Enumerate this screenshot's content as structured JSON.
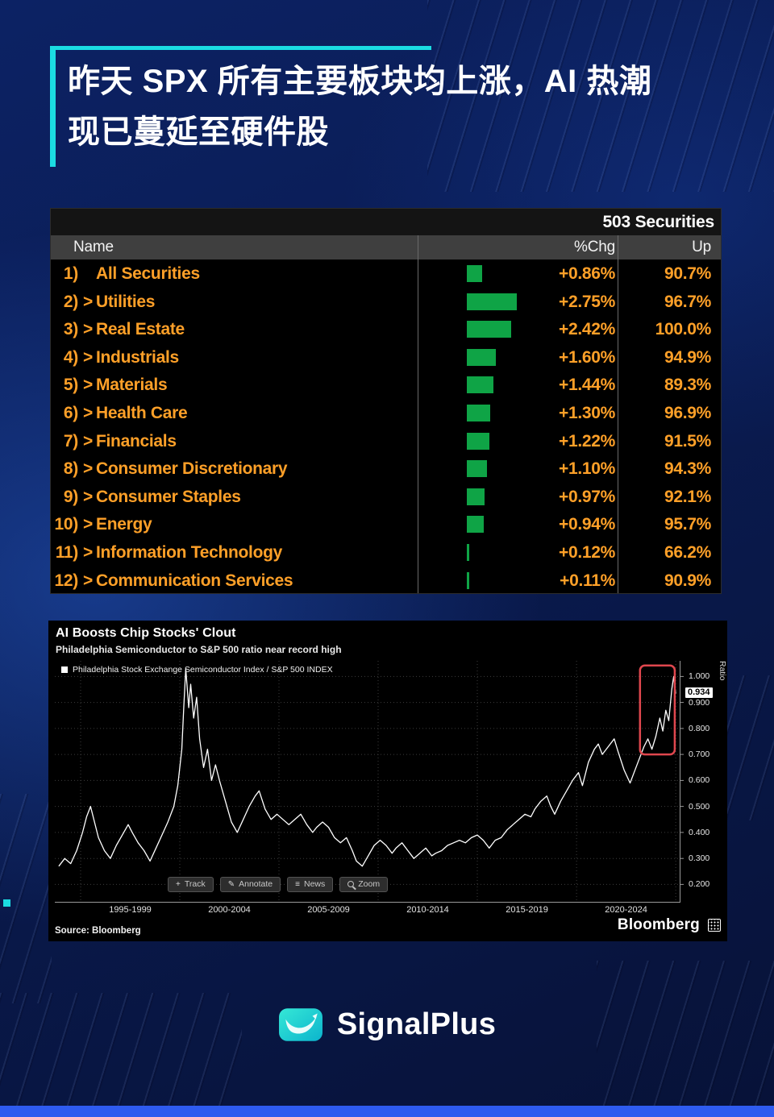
{
  "page": {
    "title_line1": "昨天 SPX 所有主要板块均上涨，AI 热潮",
    "title_line2": "现已蔓延至硬件股"
  },
  "theme": {
    "accent_cyan": "#1bdce2",
    "amber": "#ffa028",
    "bar_green": "#0fa446",
    "highlight_red": "#e0474e",
    "bottom_bar_blue": "#2e5bf0",
    "logo_teal": "#17cfc9"
  },
  "chart_data": [
    {
      "type": "table",
      "title": "503 Securities",
      "columns": [
        "Name",
        "%Chg",
        "Up"
      ],
      "rows": [
        {
          "num": "1)",
          "arrow": "",
          "name": "All Securities",
          "chg": "+0.86%",
          "chg_val": 0.86,
          "up": "90.7%"
        },
        {
          "num": "2)",
          "arrow": ">",
          "name": "Utilities",
          "chg": "+2.75%",
          "chg_val": 2.75,
          "up": "96.7%"
        },
        {
          "num": "3)",
          "arrow": ">",
          "name": "Real Estate",
          "chg": "+2.42%",
          "chg_val": 2.42,
          "up": "100.0%"
        },
        {
          "num": "4)",
          "arrow": ">",
          "name": "Industrials",
          "chg": "+1.60%",
          "chg_val": 1.6,
          "up": "94.9%"
        },
        {
          "num": "5)",
          "arrow": ">",
          "name": "Materials",
          "chg": "+1.44%",
          "chg_val": 1.44,
          "up": "89.3%"
        },
        {
          "num": "6)",
          "arrow": ">",
          "name": "Health Care",
          "chg": "+1.30%",
          "chg_val": 1.3,
          "up": "96.9%"
        },
        {
          "num": "7)",
          "arrow": ">",
          "name": "Financials",
          "chg": "+1.22%",
          "chg_val": 1.22,
          "up": "91.5%"
        },
        {
          "num": "8)",
          "arrow": ">",
          "name": "Consumer Discretionary",
          "chg": "+1.10%",
          "chg_val": 1.1,
          "up": "94.3%"
        },
        {
          "num": "9)",
          "arrow": ">",
          "name": "Consumer Staples",
          "chg": "+0.97%",
          "chg_val": 0.97,
          "up": "92.1%"
        },
        {
          "num": "10)",
          "arrow": ">",
          "name": "Energy",
          "chg": "+0.94%",
          "chg_val": 0.94,
          "up": "95.7%"
        },
        {
          "num": "11)",
          "arrow": ">",
          "name": "Information Technology",
          "chg": "+0.12%",
          "chg_val": 0.12,
          "up": "66.2%"
        },
        {
          "num": "12)",
          "arrow": ">",
          "name": "Communication Services",
          "chg": "+0.11%",
          "chg_val": 0.11,
          "up": "90.9%"
        }
      ]
    },
    {
      "type": "line",
      "title": "AI Boosts Chip Stocks' Clout",
      "subtitle": "Philadelphia Semiconductor to S&P 500 ratio near record high",
      "legend": "Philadelphia Stock Exchange Semiconductor Index / S&P 500 INDEX",
      "ylabel": "Ratio",
      "xlim": [
        1993.7,
        2025.2
      ],
      "ylim": [
        0.13,
        1.06
      ],
      "yticks": [
        {
          "value": 1.0,
          "label": "1.000"
        },
        {
          "value": 0.9,
          "label": "0.900"
        },
        {
          "value": 0.8,
          "label": "0.800"
        },
        {
          "value": 0.7,
          "label": "0.700"
        },
        {
          "value": 0.6,
          "label": "0.600"
        },
        {
          "value": 0.5,
          "label": "0.500"
        },
        {
          "value": 0.4,
          "label": "0.400"
        },
        {
          "value": 0.3,
          "label": "0.300"
        },
        {
          "value": 0.2,
          "label": "0.200"
        }
      ],
      "x_gridlines": [
        1995,
        2000,
        2005,
        2010,
        2015,
        2020,
        2025
      ],
      "x_tick_labels": [
        "1995-1999",
        "2000-2004",
        "2005-2009",
        "2010-2014",
        "2015-2019",
        "2020-2024"
      ],
      "grid": true,
      "legend_position": "top-left",
      "last_value": 0.934,
      "last_value_label": "0.934",
      "highlight": {
        "x_start": 2023.2,
        "x_end": 2024.95,
        "y_low": 0.7,
        "y_high": 1.042
      },
      "toolbar": [
        {
          "icon": "+",
          "label": "Track"
        },
        {
          "icon": "✎",
          "label": "Annotate"
        },
        {
          "icon": "≡",
          "label": "News"
        },
        {
          "icon": "",
          "label": "Zoom"
        }
      ],
      "source": "Source: Bloomberg",
      "brand": "Bloomberg",
      "series": [
        {
          "name": "Philadelphia Stock Exchange Semiconductor Index / S&P 500 INDEX",
          "points": [
            [
              1993.9,
              0.27
            ],
            [
              1994.2,
              0.3
            ],
            [
              1994.5,
              0.28
            ],
            [
              1994.8,
              0.33
            ],
            [
              1995.1,
              0.4
            ],
            [
              1995.3,
              0.46
            ],
            [
              1995.5,
              0.5
            ],
            [
              1995.7,
              0.44
            ],
            [
              1995.9,
              0.38
            ],
            [
              1996.2,
              0.33
            ],
            [
              1996.5,
              0.3
            ],
            [
              1996.8,
              0.35
            ],
            [
              1997.1,
              0.39
            ],
            [
              1997.4,
              0.43
            ],
            [
              1997.6,
              0.4
            ],
            [
              1997.9,
              0.36
            ],
            [
              1998.2,
              0.33
            ],
            [
              1998.5,
              0.29
            ],
            [
              1998.8,
              0.34
            ],
            [
              1999.1,
              0.39
            ],
            [
              1999.4,
              0.44
            ],
            [
              1999.7,
              0.5
            ],
            [
              1999.9,
              0.58
            ],
            [
              2000.1,
              0.72
            ],
            [
              2000.2,
              0.88
            ],
            [
              2000.3,
              1.03
            ],
            [
              2000.45,
              0.88
            ],
            [
              2000.55,
              0.97
            ],
            [
              2000.7,
              0.84
            ],
            [
              2000.85,
              0.92
            ],
            [
              2001.0,
              0.76
            ],
            [
              2001.2,
              0.65
            ],
            [
              2001.4,
              0.72
            ],
            [
              2001.6,
              0.6
            ],
            [
              2001.8,
              0.66
            ],
            [
              2002.0,
              0.6
            ],
            [
              2002.3,
              0.52
            ],
            [
              2002.6,
              0.44
            ],
            [
              2002.9,
              0.4
            ],
            [
              2003.2,
              0.45
            ],
            [
              2003.5,
              0.5
            ],
            [
              2003.8,
              0.54
            ],
            [
              2004.0,
              0.56
            ],
            [
              2004.3,
              0.49
            ],
            [
              2004.6,
              0.45
            ],
            [
              2004.9,
              0.47
            ],
            [
              2005.2,
              0.45
            ],
            [
              2005.5,
              0.43
            ],
            [
              2005.8,
              0.45
            ],
            [
              2006.1,
              0.47
            ],
            [
              2006.4,
              0.43
            ],
            [
              2006.7,
              0.4
            ],
            [
              2006.9,
              0.42
            ],
            [
              2007.2,
              0.44
            ],
            [
              2007.5,
              0.42
            ],
            [
              2007.8,
              0.38
            ],
            [
              2008.1,
              0.36
            ],
            [
              2008.4,
              0.38
            ],
            [
              2008.7,
              0.33
            ],
            [
              2008.9,
              0.29
            ],
            [
              2009.2,
              0.27
            ],
            [
              2009.5,
              0.31
            ],
            [
              2009.8,
              0.35
            ],
            [
              2010.1,
              0.37
            ],
            [
              2010.4,
              0.35
            ],
            [
              2010.7,
              0.32
            ],
            [
              2010.9,
              0.34
            ],
            [
              2011.2,
              0.36
            ],
            [
              2011.5,
              0.33
            ],
            [
              2011.8,
              0.3
            ],
            [
              2012.1,
              0.32
            ],
            [
              2012.4,
              0.34
            ],
            [
              2012.7,
              0.31
            ],
            [
              2012.9,
              0.32
            ],
            [
              2013.2,
              0.33
            ],
            [
              2013.5,
              0.35
            ],
            [
              2013.8,
              0.36
            ],
            [
              2014.1,
              0.37
            ],
            [
              2014.4,
              0.36
            ],
            [
              2014.7,
              0.38
            ],
            [
              2015.0,
              0.39
            ],
            [
              2015.3,
              0.37
            ],
            [
              2015.6,
              0.34
            ],
            [
              2015.9,
              0.37
            ],
            [
              2016.2,
              0.38
            ],
            [
              2016.5,
              0.41
            ],
            [
              2016.8,
              0.43
            ],
            [
              2017.1,
              0.45
            ],
            [
              2017.4,
              0.47
            ],
            [
              2017.7,
              0.46
            ],
            [
              2017.9,
              0.49
            ],
            [
              2018.2,
              0.52
            ],
            [
              2018.5,
              0.54
            ],
            [
              2018.7,
              0.5
            ],
            [
              2018.9,
              0.47
            ],
            [
              2019.2,
              0.52
            ],
            [
              2019.5,
              0.56
            ],
            [
              2019.8,
              0.6
            ],
            [
              2020.1,
              0.63
            ],
            [
              2020.3,
              0.58
            ],
            [
              2020.6,
              0.67
            ],
            [
              2020.9,
              0.72
            ],
            [
              2021.1,
              0.74
            ],
            [
              2021.3,
              0.7
            ],
            [
              2021.6,
              0.73
            ],
            [
              2021.9,
              0.76
            ],
            [
              2022.1,
              0.71
            ],
            [
              2022.4,
              0.64
            ],
            [
              2022.7,
              0.59
            ],
            [
              2022.9,
              0.63
            ],
            [
              2023.1,
              0.67
            ],
            [
              2023.4,
              0.73
            ],
            [
              2023.6,
              0.76
            ],
            [
              2023.8,
              0.72
            ],
            [
              2024.0,
              0.77
            ],
            [
              2024.2,
              0.84
            ],
            [
              2024.35,
              0.79
            ],
            [
              2024.5,
              0.87
            ],
            [
              2024.65,
              0.83
            ],
            [
              2024.8,
              0.95
            ],
            [
              2024.9,
              1.0
            ],
            [
              2025.0,
              0.934
            ]
          ]
        }
      ]
    }
  ],
  "footer": {
    "brand": "SignalPlus"
  }
}
